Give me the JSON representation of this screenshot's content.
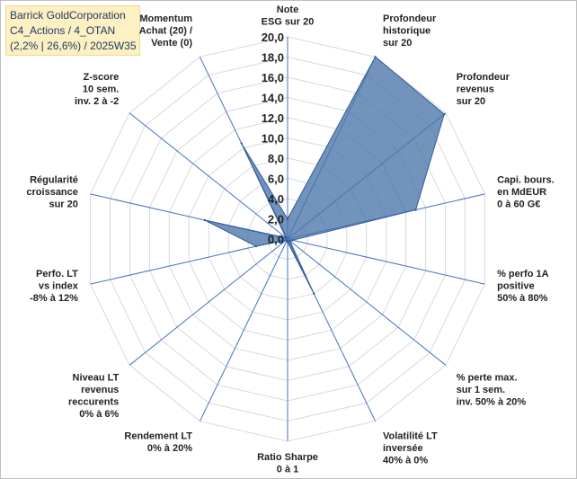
{
  "title_box": {
    "line1": "Barrick GoldCorporation",
    "line2": "C4_Actions / 4_OTAN",
    "line3": "(2,2% | 26,6%) / 2025W35"
  },
  "chart_data": {
    "type": "radar",
    "radial_ticks": [
      "0,0",
      "2,0",
      "4,0",
      "6,0",
      "8,0",
      "10,0",
      "12,0",
      "14,0",
      "16,0",
      "18,0",
      "20,0"
    ],
    "rmax": 20,
    "axes": [
      {
        "label": [
          "Note",
          "ESG sur 20"
        ],
        "value": 2.0
      },
      {
        "label": [
          "Profondeur",
          "historique",
          "sur 20"
        ],
        "value": 20.0
      },
      {
        "label": [
          "Profondeur",
          "revenus",
          "sur 20"
        ],
        "value": 19.8
      },
      {
        "label": [
          "Capi. bours.",
          "en MdEUR",
          "0 à 60 G€"
        ],
        "value": 13.0
      },
      {
        "label": [
          "% perfo 1A",
          "positive",
          "50% à 80%"
        ],
        "value": 0.5
      },
      {
        "label": [
          "% perte max.",
          "sur 1 sem.",
          "inv. 50% à 20%"
        ],
        "value": 0.3
      },
      {
        "label": [
          "Volatilité LT",
          "inversée",
          "40% à 0%"
        ],
        "value": 6.0
      },
      {
        "label": [
          "Ratio Sharpe",
          "0 à 1"
        ],
        "value": 0.3
      },
      {
        "label": [
          "Rendement LT",
          "0% à 20%"
        ],
        "value": 0.2
      },
      {
        "label": [
          "Niveau LT",
          "revenus",
          "reccurents",
          "0% à 6%"
        ],
        "value": 0.2
      },
      {
        "label": [
          "Perfo. LT",
          "vs index",
          "-8% à 12%"
        ],
        "value": 3.2
      },
      {
        "label": [
          "Régularité",
          "croissance",
          "sur 20"
        ],
        "value": 8.4
      },
      {
        "label": [
          "Z-score",
          "10 sem.",
          "inv. 2 à -2"
        ],
        "value": 0.2
      },
      {
        "label": [
          "Momentum",
          "Achat (20) /",
          "Vente (0)"
        ],
        "value": 10.5
      }
    ],
    "colors": {
      "fill": "#4a74a8",
      "stroke": "#2f5c99",
      "grid": "#d9d9d9",
      "spoke": "#4472c4"
    }
  }
}
